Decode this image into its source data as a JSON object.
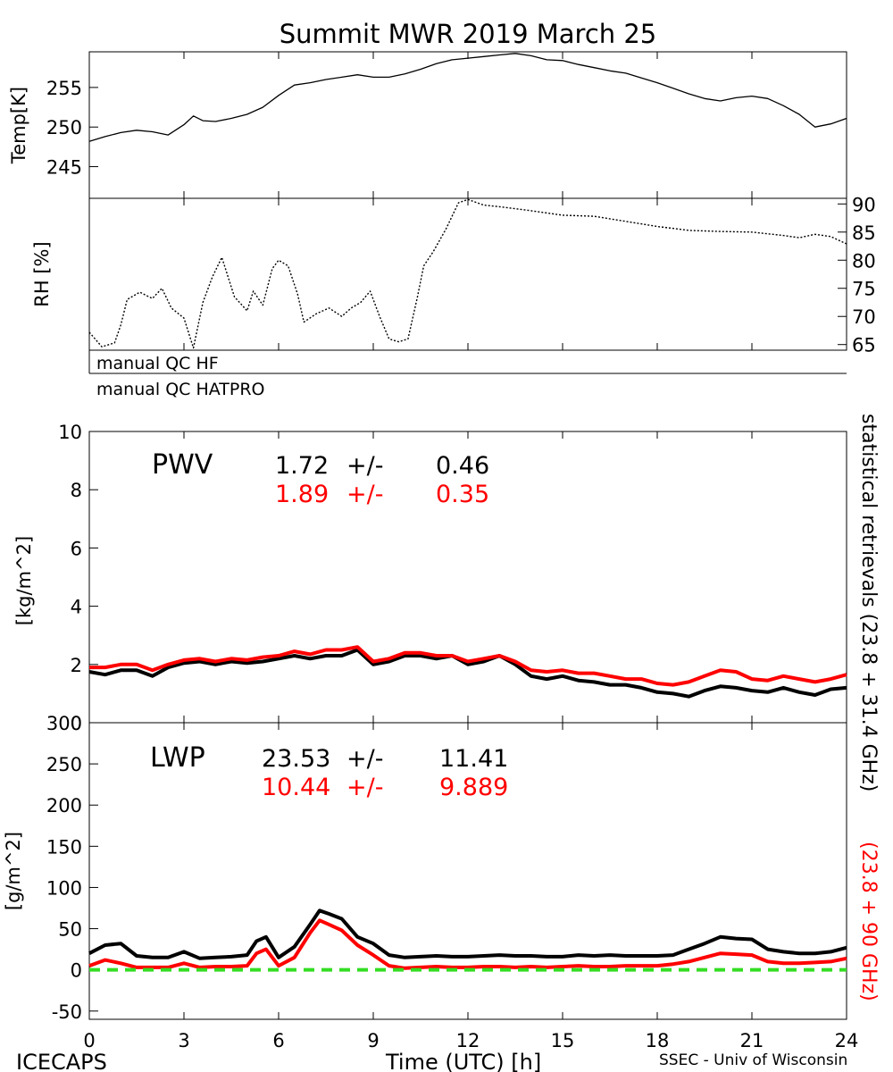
{
  "header": {
    "title": "Summit MWR 2019 March 25"
  },
  "footer": {
    "left": "ICECAPS",
    "xlabel": "Time (UTC) [h]",
    "right": "SSEC - Univ of Wisconsin"
  },
  "side_labels": {
    "black": "statistical retrievals (23.8 + 31.4 GHz)",
    "red": "(23.8 + 90 GHz)"
  },
  "qc": {
    "hf": "manual QC HF",
    "hatpro": "manual QC HATPRO"
  },
  "colors": {
    "series_black": "#000000",
    "series_red": "#ff0000",
    "zero_line": "#33dd22"
  },
  "stats": {
    "pwv": {
      "label": "PWV",
      "black_mean": "1.72",
      "black_sd": "0.46",
      "red_mean": "1.89",
      "red_sd": "0.35",
      "pm": "+/-"
    },
    "lwp": {
      "label": "LWP",
      "black_mean": "23.53",
      "black_sd": "11.41",
      "red_mean": "10.44",
      "red_sd": "9.889",
      "pm": "+/-"
    }
  },
  "chart_data": [
    {
      "type": "line",
      "title": "Summit MWR 2019 March 25",
      "ylabel": "Temp[K]",
      "xlim": [
        0,
        24
      ],
      "ylim": [
        241,
        259.5
      ],
      "yticks": [
        245,
        250,
        255
      ],
      "series": [
        {
          "color": "#000000",
          "x": [
            0,
            0.5,
            1,
            1.5,
            2,
            2.5,
            3,
            3.3,
            3.6,
            4,
            4.5,
            5,
            5.5,
            6,
            6.5,
            7,
            7.5,
            8,
            8.5,
            9,
            9.5,
            10,
            10.5,
            11,
            11.5,
            12,
            12.5,
            13,
            13.5,
            14,
            14.5,
            15,
            15.5,
            16,
            16.5,
            17,
            17.5,
            18,
            18.5,
            19,
            19.5,
            20,
            20.5,
            21,
            21.5,
            22,
            22.5,
            23,
            23.5,
            24
          ],
          "y": [
            248.2,
            248.8,
            249.3,
            249.6,
            249.4,
            249.0,
            250.3,
            251.4,
            250.8,
            250.7,
            251.1,
            251.6,
            252.5,
            254.0,
            255.3,
            255.6,
            256.0,
            256.3,
            256.6,
            256.3,
            256.3,
            256.7,
            257.3,
            258.0,
            258.5,
            258.7,
            258.9,
            259.1,
            259.3,
            259.0,
            258.5,
            258.4,
            257.9,
            257.5,
            257.1,
            256.8,
            256.2,
            255.6,
            254.9,
            254.2,
            253.6,
            253.3,
            253.7,
            253.9,
            253.6,
            252.7,
            251.6,
            250.0,
            250.4,
            251.1
          ]
        }
      ]
    },
    {
      "type": "scatter",
      "ylabel": "RH [%]",
      "xlim": [
        0,
        24
      ],
      "ylim": [
        64,
        91
      ],
      "yticks": [
        65,
        70,
        75,
        80,
        85,
        90
      ],
      "series": [
        {
          "color": "#000000",
          "x": [
            0,
            0.4,
            0.8,
            1.0,
            1.2,
            1.6,
            2.0,
            2.3,
            2.6,
            3.0,
            3.3,
            3.6,
            3.9,
            4.2,
            4.6,
            5.0,
            5.2,
            5.5,
            5.8,
            6.0,
            6.3,
            6.6,
            6.8,
            7.2,
            7.6,
            8.0,
            8.3,
            8.6,
            8.9,
            9.2,
            9.5,
            9.8,
            10.1,
            10.4,
            10.6,
            10.9,
            11.3,
            11.7,
            12.0,
            12.5,
            13,
            14,
            15,
            16,
            17,
            18,
            19,
            20,
            21,
            22,
            22.5,
            23,
            23.5,
            24
          ],
          "y": [
            67.2,
            64.6,
            65.3,
            68.5,
            73.0,
            74.3,
            73.2,
            75.0,
            71.5,
            69.7,
            64.4,
            72.5,
            77.0,
            80.5,
            73.5,
            71.0,
            74.5,
            72.0,
            78.5,
            80.0,
            79.0,
            74.0,
            69.0,
            70.5,
            71.5,
            70.0,
            71.5,
            72.5,
            74.5,
            70.0,
            66.0,
            65.5,
            66.0,
            73.5,
            79.0,
            81.5,
            85.5,
            90.2,
            90.8,
            89.8,
            89.5,
            88.8,
            88.0,
            87.8,
            86.9,
            86.0,
            85.3,
            85.1,
            85.0,
            84.4,
            84.0,
            84.6,
            84.2,
            82.9
          ]
        }
      ]
    },
    {
      "type": "line",
      "ylabel": "[kg/m^2]",
      "xlim": [
        0,
        24
      ],
      "ylim": [
        0,
        10
      ],
      "yticks": [
        0,
        2,
        4,
        6,
        8,
        10
      ],
      "series": [
        {
          "color": "#000000",
          "x": [
            0,
            0.5,
            1,
            1.5,
            2,
            2.5,
            3,
            3.5,
            4,
            4.5,
            5,
            5.5,
            6,
            6.5,
            7,
            7.5,
            8,
            8.5,
            9,
            9.5,
            10,
            10.5,
            11,
            11.5,
            12,
            12.5,
            13,
            13.5,
            14,
            14.5,
            15,
            15.5,
            16,
            16.5,
            17,
            17.5,
            18,
            18.5,
            19,
            19.5,
            20,
            20.5,
            21,
            21.5,
            22,
            22.5,
            23,
            23.5,
            24
          ],
          "y": [
            1.75,
            1.65,
            1.8,
            1.8,
            1.6,
            1.9,
            2.05,
            2.1,
            2.0,
            2.1,
            2.05,
            2.1,
            2.2,
            2.3,
            2.2,
            2.3,
            2.3,
            2.5,
            2.0,
            2.1,
            2.3,
            2.3,
            2.2,
            2.3,
            2.0,
            2.1,
            2.3,
            2.0,
            1.6,
            1.5,
            1.6,
            1.45,
            1.4,
            1.3,
            1.3,
            1.2,
            1.05,
            1.0,
            0.9,
            1.1,
            1.25,
            1.2,
            1.1,
            1.05,
            1.2,
            1.05,
            0.95,
            1.15,
            1.2
          ]
        },
        {
          "color": "#ff0000",
          "x": [
            0,
            0.5,
            1,
            1.5,
            2,
            2.5,
            3,
            3.5,
            4,
            4.5,
            5,
            5.5,
            6,
            6.5,
            7,
            7.5,
            8,
            8.5,
            9,
            9.5,
            10,
            10.5,
            11,
            11.5,
            12,
            12.5,
            13,
            13.5,
            14,
            14.5,
            15,
            15.5,
            16,
            16.5,
            17,
            17.5,
            18,
            18.5,
            19,
            19.5,
            20,
            20.5,
            21,
            21.5,
            22,
            22.5,
            23,
            23.5,
            24
          ],
          "y": [
            1.9,
            1.9,
            2.0,
            2.0,
            1.8,
            2.0,
            2.15,
            2.2,
            2.1,
            2.2,
            2.15,
            2.25,
            2.3,
            2.45,
            2.35,
            2.5,
            2.5,
            2.6,
            2.1,
            2.2,
            2.4,
            2.4,
            2.3,
            2.3,
            2.1,
            2.2,
            2.3,
            2.1,
            1.8,
            1.75,
            1.8,
            1.7,
            1.7,
            1.6,
            1.5,
            1.5,
            1.35,
            1.3,
            1.4,
            1.6,
            1.8,
            1.75,
            1.5,
            1.45,
            1.6,
            1.5,
            1.4,
            1.5,
            1.65
          ]
        }
      ]
    },
    {
      "type": "line",
      "ylabel": "[g/m^2]",
      "xlim": [
        0,
        24
      ],
      "ylim": [
        -60,
        300
      ],
      "yticks": [
        -50,
        0,
        50,
        100,
        150,
        200,
        250,
        300
      ],
      "series": [
        {
          "color": "#000000",
          "x": [
            0,
            0.5,
            1,
            1.5,
            2,
            2.5,
            3,
            3.5,
            4,
            4.5,
            5,
            5.3,
            5.6,
            6,
            6.5,
            7,
            7.3,
            7.6,
            8,
            8.5,
            9,
            9.5,
            10,
            10.5,
            11,
            11.5,
            12,
            12.5,
            13,
            13.5,
            14,
            14.5,
            15,
            15.5,
            16,
            16.5,
            17,
            17.5,
            18,
            18.5,
            19,
            19.5,
            20,
            20.5,
            21,
            21.5,
            22,
            22.5,
            23,
            23.5,
            24
          ],
          "y": [
            20,
            30,
            32,
            17,
            15,
            15,
            22,
            14,
            15,
            16,
            18,
            35,
            40,
            15,
            28,
            55,
            72,
            68,
            62,
            40,
            32,
            18,
            15,
            16,
            17,
            16,
            16,
            17,
            18,
            17,
            17,
            16,
            16,
            18,
            17,
            18,
            17,
            17,
            17,
            18,
            25,
            32,
            40,
            38,
            37,
            25,
            22,
            20,
            20,
            22,
            27
          ]
        },
        {
          "color": "#ff0000",
          "x": [
            0,
            0.5,
            1,
            1.5,
            2,
            2.5,
            3,
            3.5,
            4,
            4.5,
            5,
            5.3,
            5.6,
            6,
            6.5,
            7,
            7.3,
            7.6,
            8,
            8.5,
            9,
            9.5,
            10,
            10.5,
            11,
            11.5,
            12,
            12.5,
            13,
            13.5,
            14,
            14.5,
            15,
            15.5,
            16,
            16.5,
            17,
            17.5,
            18,
            18.5,
            19,
            19.5,
            20,
            20.5,
            21,
            21.5,
            22,
            22.5,
            23,
            23.5,
            24
          ],
          "y": [
            5,
            12,
            8,
            3,
            3,
            3,
            8,
            3,
            4,
            4,
            5,
            20,
            25,
            5,
            15,
            45,
            60,
            55,
            48,
            30,
            18,
            5,
            2,
            3,
            4,
            3,
            3,
            4,
            4,
            3,
            4,
            3,
            4,
            5,
            4,
            4,
            5,
            5,
            5,
            7,
            10,
            15,
            20,
            19,
            18,
            10,
            8,
            8,
            9,
            10,
            14
          ]
        }
      ]
    }
  ],
  "xaxis": {
    "ticks": [
      "0",
      "3",
      "6",
      "9",
      "12",
      "15",
      "18",
      "21",
      "24"
    ]
  }
}
